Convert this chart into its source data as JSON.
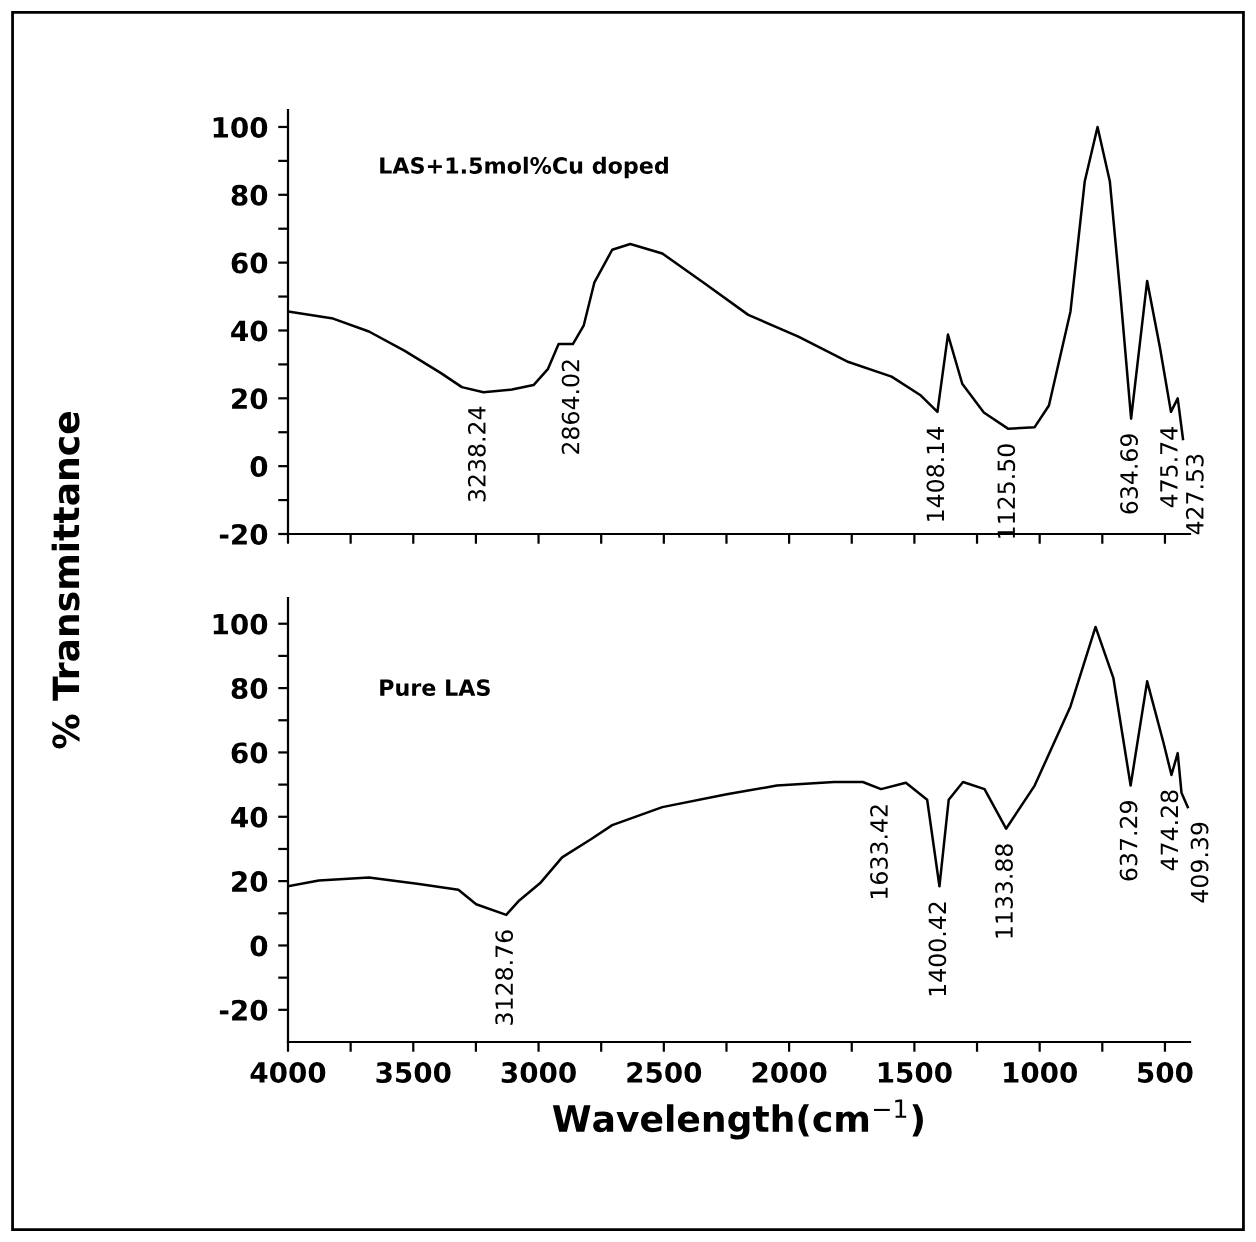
{
  "chart_data": [
    {
      "type": "line",
      "title": "LAS+1.5mol%Cu doped",
      "ylabel": "% Transmittance",
      "tick_labels": "y",
      "grid": false,
      "legend": false,
      "xlim": [
        4000,
        400
      ],
      "ylim": [
        -20,
        105
      ],
      "xticks": [
        {
          "value": 4000,
          "label": null
        },
        {
          "value": 3750,
          "label": null
        },
        {
          "value": 3500,
          "label": null
        },
        {
          "value": 3250,
          "label": null
        },
        {
          "value": 3000,
          "label": null
        },
        {
          "value": 2750,
          "label": null
        },
        {
          "value": 2500,
          "label": null
        },
        {
          "value": 2250,
          "label": null
        },
        {
          "value": 2000,
          "label": null
        },
        {
          "value": 1750,
          "label": null
        },
        {
          "value": 1500,
          "label": null
        },
        {
          "value": 1250,
          "label": null
        },
        {
          "value": 1000,
          "label": null
        },
        {
          "value": 750,
          "label": null
        },
        {
          "value": 500,
          "label": null
        }
      ],
      "yticks": [
        -20,
        {
          "value": -10,
          "label": null
        },
        0,
        {
          "value": 10,
          "label": null
        },
        20,
        {
          "value": 30,
          "label": null
        },
        40,
        {
          "value": 50,
          "label": null
        },
        60,
        {
          "value": 70,
          "label": null
        },
        80,
        {
          "value": 90,
          "label": null
        },
        100
      ],
      "series": [
        {
          "color": "#000000",
          "x": [
            4000,
            3820,
            3677,
            3534,
            3391,
            3306,
            3220,
            3106,
            3020,
            2963,
            2920,
            2863,
            2820,
            2777,
            2706,
            2634,
            2506,
            2334,
            2163,
            1963,
            1763,
            1591,
            1477,
            1408,
            1366,
            1309,
            1223,
            1125,
            1020,
            963,
            877,
            820,
            769,
            720,
            677,
            635,
            571,
            520,
            476,
            449,
            428
          ],
          "values": [
            45.6,
            43.5,
            39.7,
            34,
            27.5,
            23.3,
            21.8,
            22.6,
            23.9,
            28.6,
            36,
            36,
            41.4,
            54.2,
            63.8,
            65.5,
            62.7,
            53.7,
            44.6,
            38.2,
            30.7,
            26.4,
            21,
            16,
            38.8,
            24.3,
            15.8,
            11,
            11.5,
            17.9,
            45.6,
            84,
            100,
            84,
            49.9,
            14,
            54.6,
            35,
            16,
            20,
            8
          ]
        }
      ],
      "annotations": [
        {
          "text": "3238.24",
          "x": 3238,
          "y": 22
        },
        {
          "text": "2864.02",
          "x": 2864,
          "y": 36
        },
        {
          "text": "1408.14",
          "x": 1408,
          "y": 16
        },
        {
          "text": "1125.50",
          "x": 1125,
          "y": 11
        },
        {
          "text": "634.69",
          "x": 635,
          "y": 14
        },
        {
          "text": "475.74",
          "x": 476,
          "y": 16
        },
        {
          "text": "427.53",
          "x": 428,
          "y": 8
        }
      ]
    },
    {
      "type": "line",
      "title": "Pure LAS",
      "xlabel": "Wavelength(cm$^{−1}$)",
      "grid": false,
      "legend": false,
      "xlim": [
        4000,
        400
      ],
      "ylim": [
        -30,
        108
      ],
      "xticks": [
        4000,
        {
          "value": 3750,
          "label": null
        },
        3500,
        {
          "value": 3250,
          "label": null
        },
        3000,
        {
          "value": 2750,
          "label": null
        },
        2500,
        {
          "value": 2250,
          "label": null
        },
        2000,
        {
          "value": 1750,
          "label": null
        },
        1500,
        {
          "value": 1250,
          "label": null
        },
        1000,
        {
          "value": 750,
          "label": null
        },
        500
      ],
      "yticks": [
        -20,
        {
          "value": -10,
          "label": null
        },
        0,
        {
          "value": 10,
          "label": null
        },
        20,
        {
          "value": 30,
          "label": null
        },
        40,
        {
          "value": 50,
          "label": null
        },
        60,
        {
          "value": 70,
          "label": null
        },
        80,
        {
          "value": 90,
          "label": null
        },
        100
      ],
      "series": [
        {
          "color": "#000000",
          "x": [
            4000,
            3877,
            3677,
            3477,
            3320,
            3249,
            3129,
            3077,
            2991,
            2906,
            2791,
            2706,
            2506,
            2249,
            2049,
            1820,
            1706,
            1633,
            1534,
            1449,
            1400,
            1363,
            1306,
            1220,
            1134,
            1020,
            877,
            777,
            706,
            637,
            571,
            506,
            474,
            449,
            434,
            409
          ],
          "values": [
            18.4,
            20.2,
            21.1,
            19.1,
            17.3,
            12.8,
            9.5,
            14,
            19.6,
            27.4,
            33,
            37.4,
            43,
            47,
            49.7,
            50.8,
            50.8,
            48.6,
            50.6,
            45.3,
            18.4,
            45.3,
            50.8,
            48.6,
            36.3,
            49.7,
            74.3,
            99,
            83.2,
            49.7,
            82.1,
            63.1,
            53,
            59.8,
            47.5,
            43
          ]
        }
      ],
      "annotations": [
        {
          "text": "3128.76",
          "x": 3129,
          "y": 9.5
        },
        {
          "text": "1633.42",
          "x": 1633,
          "y": 48.6
        },
        {
          "text": "1400.42",
          "x": 1400,
          "y": 18.4
        },
        {
          "text": "1133.88",
          "x": 1134,
          "y": 36.3
        },
        {
          "text": "637.29",
          "x": 637,
          "y": 49.7
        },
        {
          "text": "474.28",
          "x": 474,
          "y": 53
        },
        {
          "text": "409.39",
          "x": 409,
          "y": 43
        }
      ]
    }
  ]
}
